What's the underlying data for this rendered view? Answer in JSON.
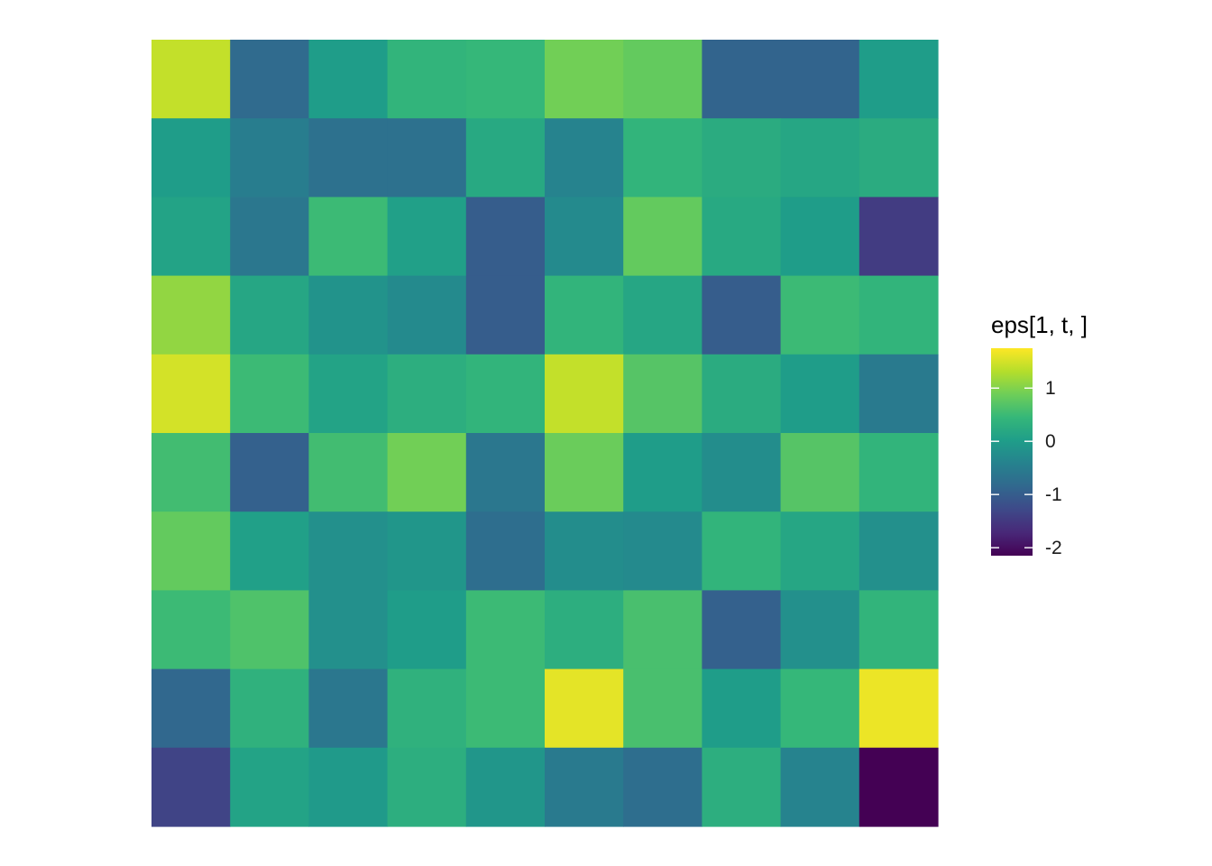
{
  "chart_data": {
    "type": "heatmap",
    "title": "",
    "xlabel": "",
    "ylabel": "",
    "grid": false,
    "legend_position": "right",
    "legend": {
      "title": "eps[1, t, ]",
      "range": [
        -2.15,
        1.75
      ],
      "ticks": [
        1,
        0,
        -1,
        -2
      ],
      "tick_labels": [
        "1",
        "0",
        "-1",
        "-2"
      ],
      "colorscale": "viridis"
    },
    "n_rows": 10,
    "n_cols": 10,
    "values": [
      [
        1.4,
        -0.8,
        0.0,
        0.4,
        0.45,
        0.9,
        0.8,
        -0.9,
        -0.9,
        0.0
      ],
      [
        0.0,
        -0.5,
        -0.7,
        -0.7,
        0.2,
        -0.4,
        0.4,
        0.25,
        0.15,
        0.25
      ],
      [
        0.1,
        -0.6,
        0.5,
        0.05,
        -1.0,
        -0.3,
        0.8,
        0.2,
        0.0,
        -1.45
      ],
      [
        1.1,
        0.15,
        -0.15,
        -0.3,
        -1.0,
        0.4,
        0.15,
        -1.0,
        0.5,
        0.4
      ],
      [
        1.5,
        0.5,
        0.1,
        0.3,
        0.4,
        1.4,
        0.7,
        0.25,
        0.0,
        -0.55
      ],
      [
        0.55,
        -0.95,
        0.55,
        0.9,
        -0.6,
        0.85,
        0.0,
        -0.25,
        0.7,
        0.4
      ],
      [
        0.8,
        0.05,
        -0.2,
        -0.1,
        -0.75,
        -0.25,
        -0.3,
        0.4,
        0.15,
        -0.2
      ],
      [
        0.5,
        0.65,
        -0.2,
        0.0,
        0.5,
        0.3,
        0.6,
        -0.95,
        -0.2,
        0.4
      ],
      [
        -0.85,
        0.35,
        -0.6,
        0.35,
        0.5,
        1.6,
        0.6,
        0.0,
        0.45,
        1.65
      ],
      [
        -1.35,
        0.1,
        -0.05,
        0.3,
        -0.1,
        -0.55,
        -0.75,
        0.3,
        -0.4,
        -2.15
      ]
    ]
  }
}
